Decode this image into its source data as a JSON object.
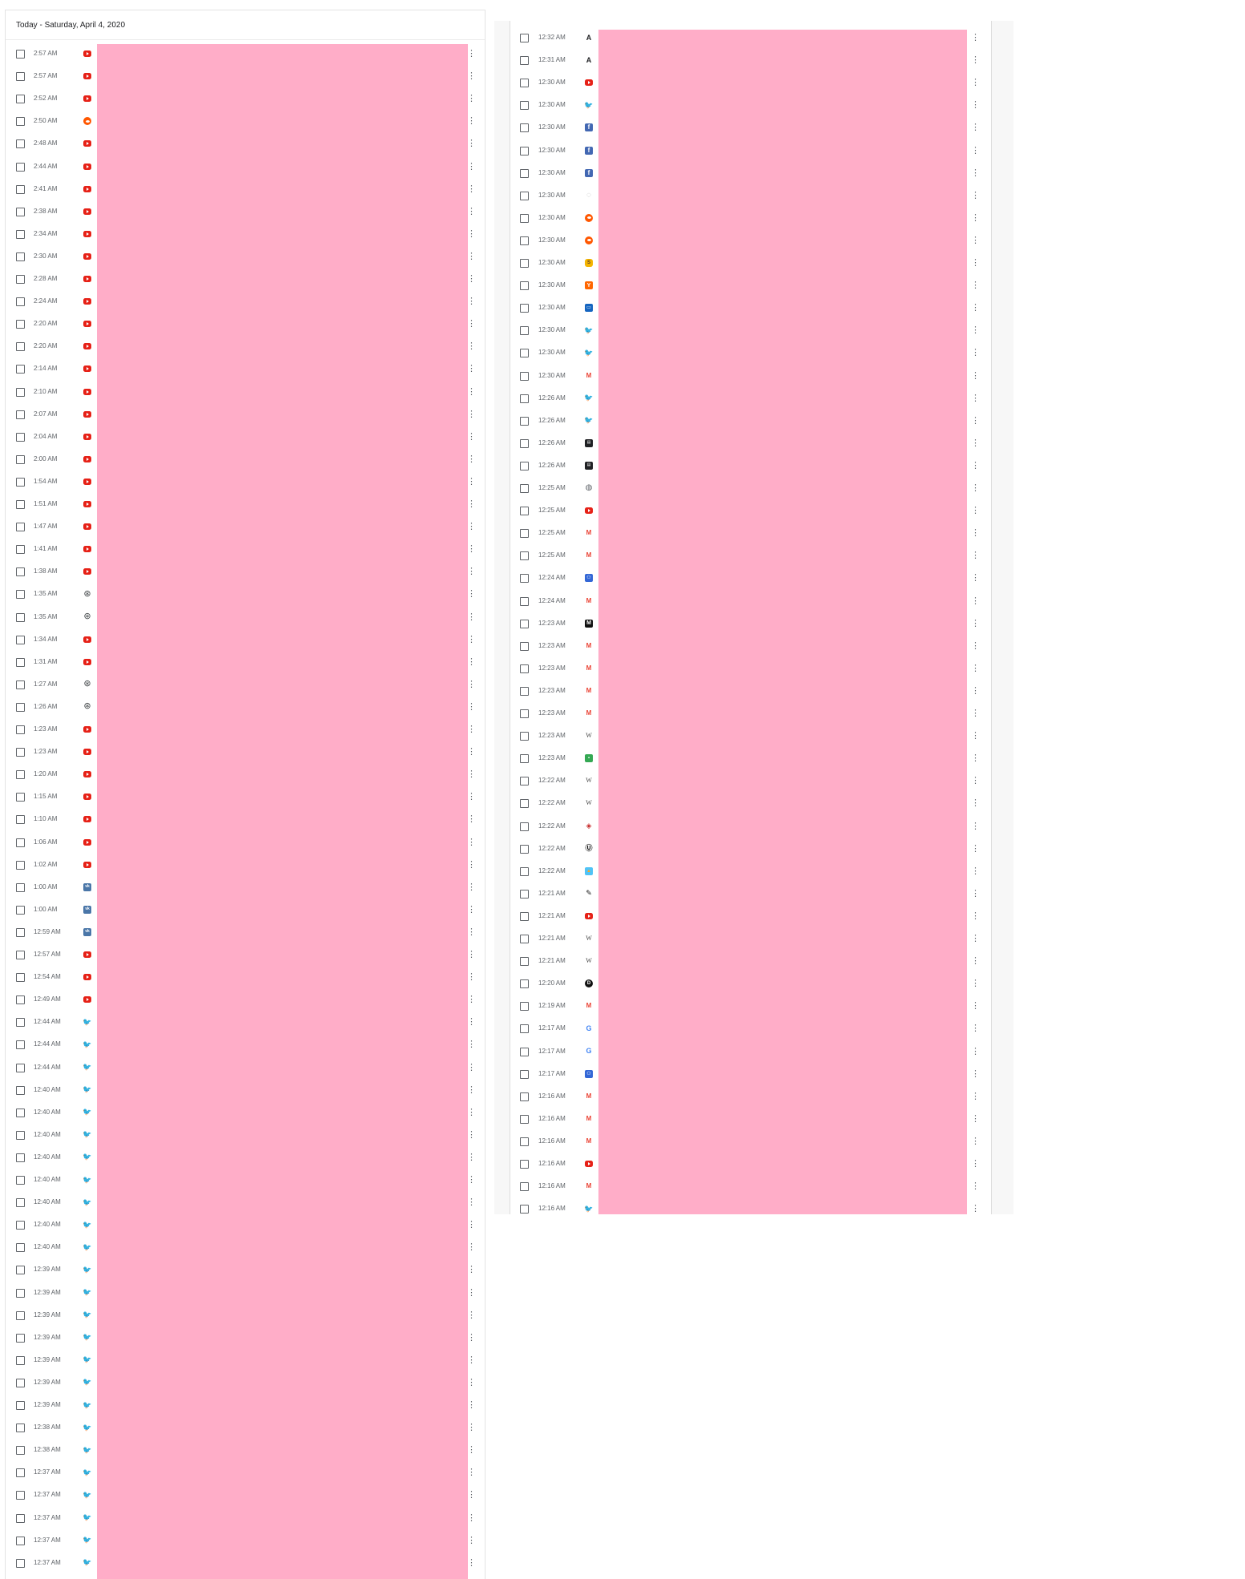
{
  "left": {
    "header": "Today - Saturday, April 4, 2020",
    "rows": [
      {
        "time": "2:57 AM",
        "icon": "youtube"
      },
      {
        "time": "2:57 AM",
        "icon": "youtube"
      },
      {
        "time": "2:52 AM",
        "icon": "youtube"
      },
      {
        "time": "2:50 AM",
        "icon": "reddit"
      },
      {
        "time": "2:48 AM",
        "icon": "youtube"
      },
      {
        "time": "2:44 AM",
        "icon": "youtube"
      },
      {
        "time": "2:41 AM",
        "icon": "youtube"
      },
      {
        "time": "2:38 AM",
        "icon": "youtube"
      },
      {
        "time": "2:34 AM",
        "icon": "youtube"
      },
      {
        "time": "2:30 AM",
        "icon": "youtube"
      },
      {
        "time": "2:28 AM",
        "icon": "youtube"
      },
      {
        "time": "2:24 AM",
        "icon": "youtube"
      },
      {
        "time": "2:20 AM",
        "icon": "youtube"
      },
      {
        "time": "2:20 AM",
        "icon": "youtube"
      },
      {
        "time": "2:14 AM",
        "icon": "youtube"
      },
      {
        "time": "2:10 AM",
        "icon": "youtube"
      },
      {
        "time": "2:07 AM",
        "icon": "youtube"
      },
      {
        "time": "2:04 AM",
        "icon": "youtube"
      },
      {
        "time": "2:00 AM",
        "icon": "youtube"
      },
      {
        "time": "1:54 AM",
        "icon": "youtube"
      },
      {
        "time": "1:51 AM",
        "icon": "youtube"
      },
      {
        "time": "1:47 AM",
        "icon": "youtube"
      },
      {
        "time": "1:41 AM",
        "icon": "youtube"
      },
      {
        "time": "1:38 AM",
        "icon": "youtube"
      },
      {
        "time": "1:35 AM",
        "icon": "globe"
      },
      {
        "time": "1:35 AM",
        "icon": "globe"
      },
      {
        "time": "1:34 AM",
        "icon": "youtube"
      },
      {
        "time": "1:31 AM",
        "icon": "youtube"
      },
      {
        "time": "1:27 AM",
        "icon": "globe"
      },
      {
        "time": "1:26 AM",
        "icon": "globe"
      },
      {
        "time": "1:23 AM",
        "icon": "youtube"
      },
      {
        "time": "1:23 AM",
        "icon": "youtube"
      },
      {
        "time": "1:20 AM",
        "icon": "youtube"
      },
      {
        "time": "1:15 AM",
        "icon": "youtube"
      },
      {
        "time": "1:10 AM",
        "icon": "youtube"
      },
      {
        "time": "1:06 AM",
        "icon": "youtube"
      },
      {
        "time": "1:02 AM",
        "icon": "youtube"
      },
      {
        "time": "1:00 AM",
        "icon": "vk"
      },
      {
        "time": "1:00 AM",
        "icon": "vk"
      },
      {
        "time": "12:59 AM",
        "icon": "vk"
      },
      {
        "time": "12:57 AM",
        "icon": "youtube"
      },
      {
        "time": "12:54 AM",
        "icon": "youtube"
      },
      {
        "time": "12:49 AM",
        "icon": "youtube"
      },
      {
        "time": "12:44 AM",
        "icon": "twitter"
      },
      {
        "time": "12:44 AM",
        "icon": "twitter"
      },
      {
        "time": "12:44 AM",
        "icon": "twitter"
      },
      {
        "time": "12:40 AM",
        "icon": "twitter"
      },
      {
        "time": "12:40 AM",
        "icon": "twitter"
      },
      {
        "time": "12:40 AM",
        "icon": "twitter"
      },
      {
        "time": "12:40 AM",
        "icon": "twitter"
      },
      {
        "time": "12:40 AM",
        "icon": "twitter"
      },
      {
        "time": "12:40 AM",
        "icon": "twitter"
      },
      {
        "time": "12:40 AM",
        "icon": "twitter"
      },
      {
        "time": "12:40 AM",
        "icon": "twitter"
      },
      {
        "time": "12:39 AM",
        "icon": "twitter"
      },
      {
        "time": "12:39 AM",
        "icon": "twitter"
      },
      {
        "time": "12:39 AM",
        "icon": "twitter"
      },
      {
        "time": "12:39 AM",
        "icon": "twitter"
      },
      {
        "time": "12:39 AM",
        "icon": "twitter"
      },
      {
        "time": "12:39 AM",
        "icon": "twitter"
      },
      {
        "time": "12:39 AM",
        "icon": "twitter"
      },
      {
        "time": "12:38 AM",
        "icon": "twitter"
      },
      {
        "time": "12:38 AM",
        "icon": "twitter"
      },
      {
        "time": "12:37 AM",
        "icon": "twitter"
      },
      {
        "time": "12:37 AM",
        "icon": "twitter"
      },
      {
        "time": "12:37 AM",
        "icon": "twitter"
      },
      {
        "time": "12:37 AM",
        "icon": "twitter"
      },
      {
        "time": "12:37 AM",
        "icon": "twitter"
      }
    ]
  },
  "right": {
    "rows": [
      {
        "time": "12:32 AM",
        "icon": "letter-a"
      },
      {
        "time": "12:31 AM",
        "icon": "letter-a"
      },
      {
        "time": "12:30 AM",
        "icon": "youtube"
      },
      {
        "time": "12:30 AM",
        "icon": "twitter"
      },
      {
        "time": "12:30 AM",
        "icon": "facebook"
      },
      {
        "time": "12:30 AM",
        "icon": "facebook"
      },
      {
        "time": "12:30 AM",
        "icon": "facebook"
      },
      {
        "time": "12:30 AM",
        "icon": "chat"
      },
      {
        "time": "12:30 AM",
        "icon": "reddit"
      },
      {
        "time": "12:30 AM",
        "icon": "reddit"
      },
      {
        "time": "12:30 AM",
        "icon": "orange-dot"
      },
      {
        "time": "12:30 AM",
        "icon": "ycomb"
      },
      {
        "time": "12:30 AM",
        "icon": "blue-box"
      },
      {
        "time": "12:30 AM",
        "icon": "twitter"
      },
      {
        "time": "12:30 AM",
        "icon": "twitter"
      },
      {
        "time": "12:30 AM",
        "icon": "gmail"
      },
      {
        "time": "12:26 AM",
        "icon": "twitter"
      },
      {
        "time": "12:26 AM",
        "icon": "twitter"
      },
      {
        "time": "12:26 AM",
        "icon": "news"
      },
      {
        "time": "12:26 AM",
        "icon": "news"
      },
      {
        "time": "12:25 AM",
        "icon": "circle-gray"
      },
      {
        "time": "12:25 AM",
        "icon": "youtube"
      },
      {
        "time": "12:25 AM",
        "icon": "gmail"
      },
      {
        "time": "12:25 AM",
        "icon": "gmail"
      },
      {
        "time": "12:24 AM",
        "icon": "people"
      },
      {
        "time": "12:24 AM",
        "icon": "gmail"
      },
      {
        "time": "12:23 AM",
        "icon": "black-m"
      },
      {
        "time": "12:23 AM",
        "icon": "gmail"
      },
      {
        "time": "12:23 AM",
        "icon": "gmail"
      },
      {
        "time": "12:23 AM",
        "icon": "gmail"
      },
      {
        "time": "12:23 AM",
        "icon": "gmail"
      },
      {
        "time": "12:23 AM",
        "icon": "wiki"
      },
      {
        "time": "12:23 AM",
        "icon": "green"
      },
      {
        "time": "12:22 AM",
        "icon": "wiki"
      },
      {
        "time": "12:22 AM",
        "icon": "wiki"
      },
      {
        "time": "12:22 AM",
        "icon": "red-shield"
      },
      {
        "time": "12:22 AM",
        "icon": "u-icon"
      },
      {
        "time": "12:22 AM",
        "icon": "landscape"
      },
      {
        "time": "12:21 AM",
        "icon": "tool"
      },
      {
        "time": "12:21 AM",
        "icon": "youtube"
      },
      {
        "time": "12:21 AM",
        "icon": "wiki"
      },
      {
        "time": "12:21 AM",
        "icon": "wiki"
      },
      {
        "time": "12:20 AM",
        "icon": "dark-circle"
      },
      {
        "time": "12:19 AM",
        "icon": "gmail"
      },
      {
        "time": "12:17 AM",
        "icon": "google"
      },
      {
        "time": "12:17 AM",
        "icon": "google"
      },
      {
        "time": "12:17 AM",
        "icon": "people"
      },
      {
        "time": "12:16 AM",
        "icon": "gmail"
      },
      {
        "time": "12:16 AM",
        "icon": "gmail"
      },
      {
        "time": "12:16 AM",
        "icon": "gmail"
      },
      {
        "time": "12:16 AM",
        "icon": "youtube"
      },
      {
        "time": "12:16 AM",
        "icon": "gmail"
      },
      {
        "time": "12:16 AM",
        "icon": "twitter"
      }
    ]
  },
  "colors": {
    "youtube": "#e62117",
    "twitter": "#1da1f2",
    "reddit": "#ff5700",
    "redaction": "#ffadc8"
  }
}
